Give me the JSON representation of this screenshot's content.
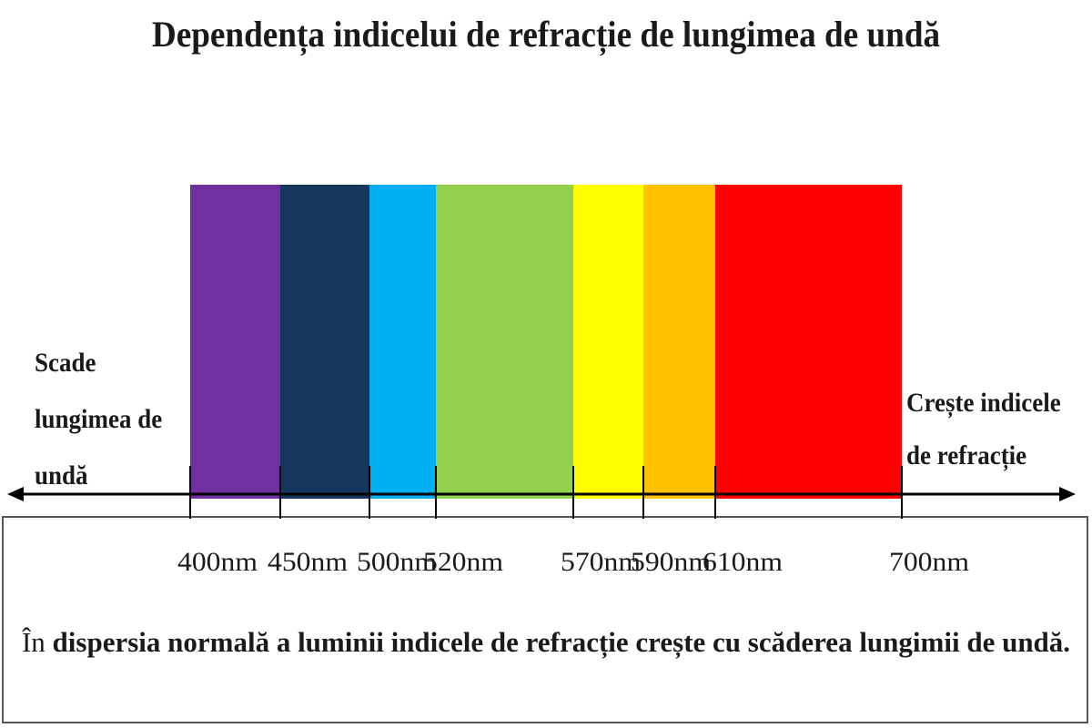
{
  "title": "Dependența indicelui de refracție de lungimea de undă",
  "left_caption": {
    "lines": [
      "Scade",
      "lungimea de",
      "undă"
    ]
  },
  "right_caption": {
    "lines": [
      "Crește indicele",
      "de refracție"
    ]
  },
  "spectrum": {
    "bands": [
      {
        "from_nm": 400,
        "to_nm": 450,
        "color": "#7030a0"
      },
      {
        "from_nm": 450,
        "to_nm": 500,
        "color": "#17365d"
      },
      {
        "from_nm": 500,
        "to_nm": 520,
        "color": "#00b0f0"
      },
      {
        "from_nm": 520,
        "to_nm": 570,
        "color": "#92d050"
      },
      {
        "from_nm": 570,
        "to_nm": 590,
        "color": "#ffff00"
      },
      {
        "from_nm": 590,
        "to_nm": 610,
        "color": "#ffc000"
      },
      {
        "from_nm": 610,
        "to_nm": 700,
        "color": "#ff0000"
      }
    ],
    "ticks": [
      {
        "value": 400,
        "label": "400nm"
      },
      {
        "value": 450,
        "label": "450nm"
      },
      {
        "value": 500,
        "label": "500nm"
      },
      {
        "value": 520,
        "label": "520nm"
      },
      {
        "value": 570,
        "label": "570nm"
      },
      {
        "value": 590,
        "label": "590nm"
      },
      {
        "value": 610,
        "label": "610nm"
      },
      {
        "value": 700,
        "label": "700nm"
      }
    ]
  },
  "statement": {
    "lead": "În",
    "rest": " dispersia normală a luminii indicele de refracție crește cu scăderea lungimii de undă."
  }
}
